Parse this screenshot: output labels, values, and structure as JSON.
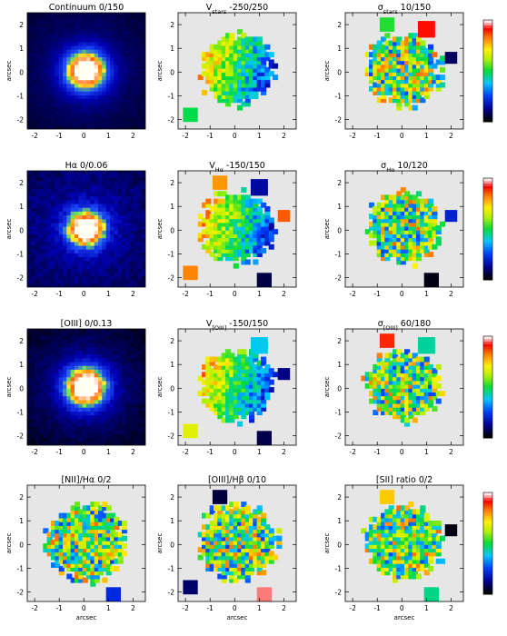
{
  "chart_data": {
    "type": "heatmap",
    "layout": "4x3 grid of 2D kinematic/emission-line maps",
    "xlabel": "arcsec",
    "ylabel": "arcsec",
    "x_ticks": [
      -2,
      -1,
      0,
      1,
      2
    ],
    "y_ticks": [
      -2,
      -1,
      0,
      1,
      2
    ],
    "xlim": [
      -2.3,
      2.5
    ],
    "ylim": [
      -2.4,
      2.5
    ],
    "x_tick_labels": [
      "-2",
      "-1",
      "0",
      "1",
      "2"
    ],
    "y_tick_labels": [
      "-2",
      "-1",
      "0",
      "1",
      "2"
    ],
    "x_axis_label": "arcsec",
    "y_axis_label": "arcsec",
    "rows": [
      [
        {
          "id": "continuum",
          "title": "Continuum    0/150",
          "cmap": "blue-white",
          "range": [
            0,
            150
          ]
        },
        {
          "id": "v_stars",
          "title": "V",
          "sub": "stars",
          "tail": "   -250/250",
          "cmap": "rainbow",
          "range": [
            -250,
            250
          ]
        },
        {
          "id": "sigma_stars",
          "title": "σ",
          "sub": "stars",
          "tail": "   10/150",
          "cmap": "rainbow",
          "range": [
            10,
            150
          ]
        }
      ],
      [
        {
          "id": "halpha",
          "title": "Hα    0/0.06",
          "cmap": "blue-white",
          "range": [
            0,
            0.06
          ]
        },
        {
          "id": "v_ha",
          "title": "V",
          "sub": "Hα",
          "tail": "   -150/150",
          "cmap": "rainbow",
          "range": [
            -150,
            150
          ]
        },
        {
          "id": "sigma_ha",
          "title": "σ",
          "sub": "Hα",
          "tail": "   10/120",
          "cmap": "rainbow",
          "range": [
            10,
            120
          ]
        }
      ],
      [
        {
          "id": "oiii",
          "title": "[OIII]    0/0.13",
          "cmap": "blue-white",
          "range": [
            0,
            0.13
          ]
        },
        {
          "id": "v_oiii",
          "title": "V",
          "sub": "[OIII]",
          "tail": "   -150/150",
          "cmap": "rainbow",
          "range": [
            -150,
            150
          ]
        },
        {
          "id": "sigma_oiii",
          "title": "σ",
          "sub": "[OIII]",
          "tail": "   60/180",
          "cmap": "rainbow",
          "range": [
            60,
            180
          ]
        }
      ],
      [
        {
          "id": "nii_ha",
          "title": "[NII]/Hα    0/2",
          "cmap": "rainbow",
          "range": [
            0,
            2
          ]
        },
        {
          "id": "oiii_hb",
          "title": "[OIII]/Hβ    0/10",
          "cmap": "rainbow",
          "range": [
            0,
            10
          ]
        },
        {
          "id": "sii_ratio",
          "title": "[SII] ratio 0/2",
          "cmap": "rainbow",
          "range": [
            0,
            2
          ]
        }
      ]
    ]
  }
}
